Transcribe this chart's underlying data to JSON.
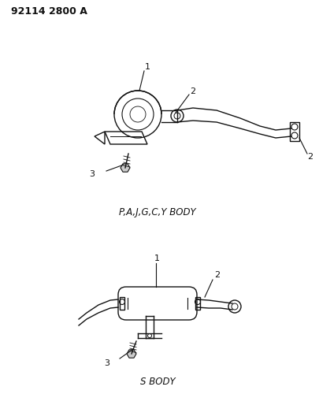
{
  "background_color": "#ffffff",
  "part_number": "92114 2800 A",
  "label1_top": "P,A,J,G,C,Y BODY",
  "label2_bottom": "S BODY",
  "text_color": "#111111",
  "line_color": "#111111",
  "title_fontsize": 9,
  "label_fontsize": 8.5,
  "callout_fontsize": 8
}
